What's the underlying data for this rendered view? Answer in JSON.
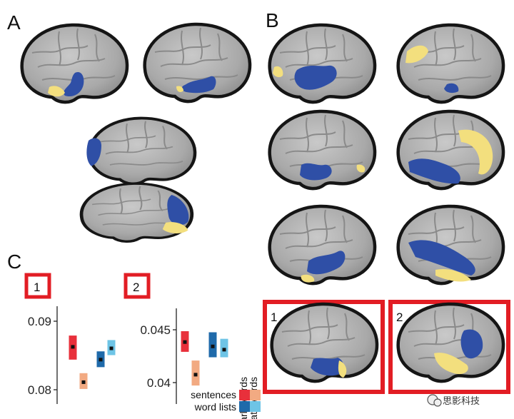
{
  "panels": {
    "a": "A",
    "b": "B",
    "c": "C"
  },
  "highlight_labels": {
    "one": "1",
    "two": "2"
  },
  "plot1": {
    "tag": "1",
    "ticks": [
      "0.09",
      "0.08"
    ],
    "ylim": [
      0.0785,
      0.0915
    ]
  },
  "plot2": {
    "tag": "2",
    "ticks": [
      "0.045",
      "0.04"
    ],
    "ylim": [
      0.0386,
      0.0474
    ]
  },
  "legend": {
    "early": "early words",
    "late": "late words",
    "sentences": "sentences",
    "word_lists": "word lists"
  },
  "colors": {
    "sentences_early": "#e8303b",
    "sentences_late": "#f2aa82",
    "wordlists_early": "#1f6aaa",
    "wordlists_late": "#6ec4e6",
    "highlight_box": "#e21d24",
    "activation_blue": "#2f4fa6",
    "activation_yellow": "#f3df7e",
    "brain": "#b9b9b9"
  },
  "watermark": {
    "text": "思影科技",
    "icon": "wechat-icon"
  },
  "chart_data": [
    {
      "type": "bar",
      "title": "1",
      "categories": [
        "sentences early words",
        "sentences late words",
        "word lists early words",
        "word lists late words"
      ],
      "series": [
        {
          "name": "early words / late words",
          "values": [
            0.0861,
            0.0814,
            0.0844,
            0.0859
          ],
          "low": [
            0.0844,
            0.0805,
            0.0834,
            0.085
          ],
          "high": [
            0.0876,
            0.0826,
            0.0855,
            0.087
          ]
        }
      ],
      "ylim": [
        0.0785,
        0.0915
      ],
      "grid": false,
      "legend": "right"
    },
    {
      "type": "bar",
      "title": "2",
      "categories": [
        "sentences early words",
        "sentences late words",
        "word lists early words",
        "word lists late words"
      ],
      "series": [
        {
          "name": "early words / late words",
          "values": [
            0.0443,
            0.0413,
            0.0439,
            0.0436
          ],
          "low": [
            0.0434,
            0.0403,
            0.0429,
            0.0429
          ],
          "high": [
            0.0453,
            0.0426,
            0.0452,
            0.0446
          ]
        }
      ],
      "ylim": [
        0.0386,
        0.0474
      ],
      "grid": false,
      "legend": "right"
    }
  ]
}
